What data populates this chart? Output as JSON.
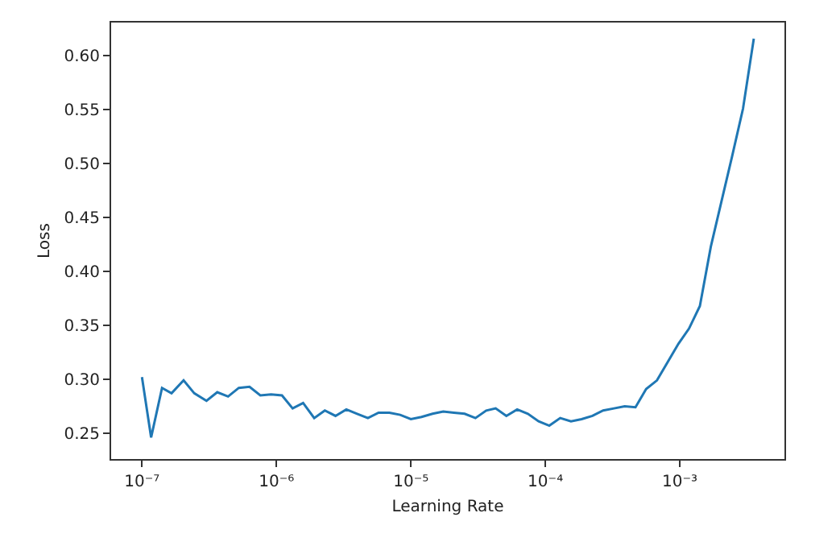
{
  "chart_data": {
    "type": "line",
    "xlabel": "Learning Rate",
    "ylabel": "Loss",
    "log": "x",
    "grid": false,
    "marker": "none",
    "line_style": "solid",
    "x": [
      1e-07,
      1.17e-07,
      1.41e-07,
      1.66e-07,
      2.04e-07,
      2.45e-07,
      3.02e-07,
      3.63e-07,
      4.37e-07,
      5.25e-07,
      6.31e-07,
      7.59e-07,
      9.12e-07,
      1.1e-06,
      1.32e-06,
      1.58e-06,
      1.91e-06,
      2.29e-06,
      2.75e-06,
      3.31e-06,
      3.98e-06,
      4.79e-06,
      5.75e-06,
      6.92e-06,
      8.32e-06,
      1e-05,
      1.2e-05,
      1.45e-05,
      1.74e-05,
      2.09e-05,
      2.51e-05,
      3.02e-05,
      3.63e-05,
      4.27e-05,
      5.13e-05,
      6.17e-05,
      7.41e-05,
      8.91e-05,
      0.000107,
      0.000129,
      0.000155,
      0.000186,
      0.000224,
      0.000269,
      0.000324,
      0.000389,
      0.000468,
      0.000562,
      0.000676,
      0.000813,
      0.000977,
      0.00117,
      0.00141,
      0.0017,
      0.00204,
      0.00245,
      0.00295,
      0.00355
    ],
    "series": [
      {
        "color": "#1f77b4",
        "values": [
          0.302,
          0.246,
          0.292,
          0.287,
          0.299,
          0.287,
          0.28,
          0.288,
          0.284,
          0.292,
          0.293,
          0.285,
          0.286,
          0.285,
          0.273,
          0.278,
          0.264,
          0.271,
          0.266,
          0.272,
          0.268,
          0.264,
          0.269,
          0.269,
          0.267,
          0.263,
          0.265,
          0.268,
          0.27,
          0.269,
          0.268,
          0.264,
          0.271,
          0.273,
          0.266,
          0.272,
          0.268,
          0.261,
          0.257,
          0.264,
          0.261,
          0.263,
          0.266,
          0.271,
          0.273,
          0.275,
          0.274,
          0.291,
          0.299,
          0.316,
          0.333,
          0.347,
          0.368,
          0.423,
          0.465,
          0.507,
          0.551,
          0.616
        ]
      }
    ],
    "xlim": [
      5.9e-08,
      0.006
    ],
    "xticks": [
      {
        "value": 1e-07,
        "label": "10⁻⁷"
      },
      {
        "value": 1e-06,
        "label": "10⁻⁶"
      },
      {
        "value": 1e-05,
        "label": "10⁻⁵"
      },
      {
        "value": 0.0001,
        "label": "10⁻⁴"
      },
      {
        "value": 0.001,
        "label": "10⁻³"
      }
    ],
    "ylim": [
      0.226,
      0.631
    ],
    "yticks": [
      0.25,
      {
        "value": 0.3,
        "label": "0.30"
      },
      0.35,
      {
        "value": 0.4,
        "label": "0.40"
      },
      0.45,
      {
        "value": 0.5,
        "label": "0.50"
      },
      0.55,
      {
        "value": 0.6,
        "label": "0.60"
      }
    ]
  }
}
